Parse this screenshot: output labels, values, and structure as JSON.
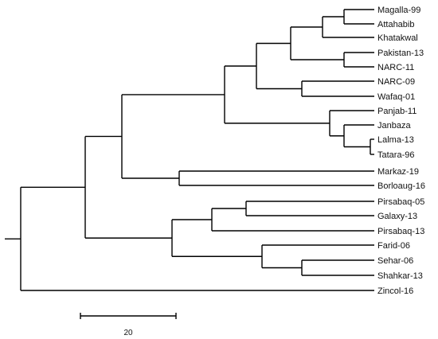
{
  "tree": {
    "taxa": [
      "Magalla-99",
      "Attahabib",
      "Khatakwal",
      "Pakistan-13",
      "NARC-11",
      "NARC-09",
      "Wafaq-01",
      "Panjab-11",
      "Janbaza",
      "Lalma-13",
      "Tatara-96",
      "Markaz-19",
      "Borloaug-16",
      "Pirsabaq-05",
      "Galaxy-13",
      "Pirsabaq-13",
      "Farid-06",
      "Sehar-06",
      "Shahkar-13",
      "Zincol-16"
    ],
    "scale_bar": {
      "label": "20",
      "length": 20
    }
  }
}
